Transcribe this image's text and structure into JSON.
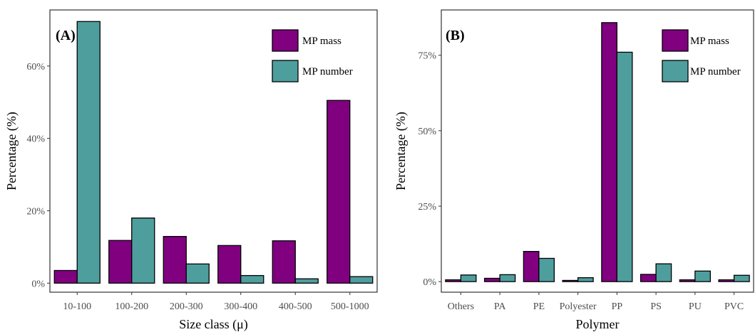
{
  "chart_data": [
    {
      "type": "bar",
      "panel_label": "(A)",
      "xlabel": "Size class (μ)",
      "ylabel": "Percentage (%)",
      "categories": [
        "10-100",
        "100-200",
        "200-300",
        "300-400",
        "400-500",
        "500-1000"
      ],
      "series": [
        {
          "name": "MP mass",
          "color": "#800080",
          "values": [
            3.5,
            11.8,
            12.9,
            10.4,
            11.7,
            50.5
          ]
        },
        {
          "name": "MP number",
          "color": "#4f9e9e",
          "values": [
            72.3,
            18.0,
            5.3,
            2.1,
            1.2,
            1.8
          ]
        }
      ],
      "ylim": [
        -2.5,
        75.5
      ],
      "yticks": [
        0,
        20,
        40,
        60
      ],
      "ytick_labels": [
        "0%",
        "20%",
        "40%",
        "60%"
      ],
      "legend_position": "top-right",
      "grid": false
    },
    {
      "type": "bar",
      "panel_label": "(B)",
      "xlabel": "Polymer",
      "ylabel": "Percentage (%)",
      "categories": [
        "Others",
        "PA",
        "PE",
        "Polyester",
        "PP",
        "PS",
        "PU",
        "PVC"
      ],
      "series": [
        {
          "name": "MP mass",
          "color": "#800080",
          "values": [
            0.6,
            1.1,
            10.0,
            0.4,
            85.8,
            2.4,
            0.6,
            0.6
          ]
        },
        {
          "name": "MP number",
          "color": "#4f9e9e",
          "values": [
            2.2,
            2.3,
            7.7,
            1.3,
            76.0,
            5.9,
            3.5,
            2.1
          ]
        }
      ],
      "ylim": [
        -3.5,
        90
      ],
      "yticks": [
        0,
        25,
        50,
        75
      ],
      "ytick_labels": [
        "0%",
        "25%",
        "50%",
        "75%"
      ],
      "legend_position": "top-right",
      "grid": false
    }
  ]
}
